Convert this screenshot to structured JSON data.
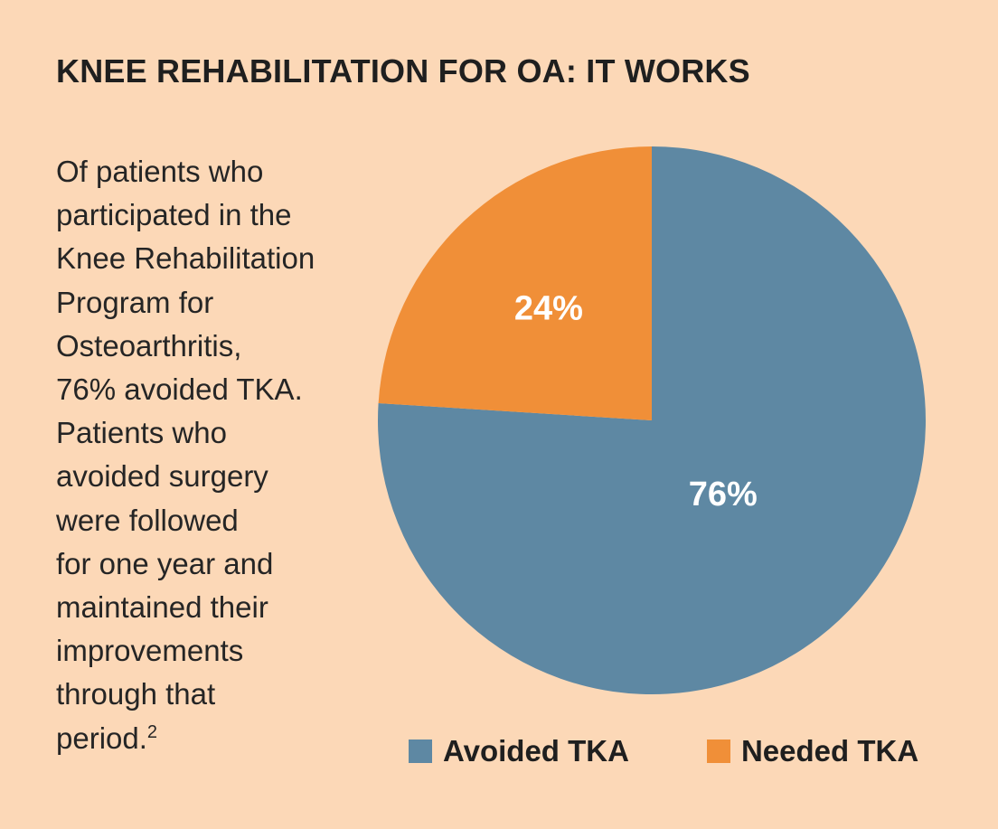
{
  "colors": {
    "background": "#fcd8b7",
    "avoided": "#5e88a3",
    "needed": "#f08f38"
  },
  "title": "KNEE REHABILITATION FOR OA: IT WORKS",
  "body_lines": [
    "Of patients who",
    "participated in the",
    "Knee Rehabilitation",
    "Program for",
    "Osteoarthritis,",
    "76% avoided TKA.",
    "Patients who",
    "avoided surgery",
    "were followed",
    "for one year and",
    "maintained their",
    "improvements",
    "through that",
    "period."
  ],
  "footnote_mark": "2",
  "chart_data": {
    "type": "pie",
    "slices": [
      {
        "name": "Avoided TKA",
        "value": 76,
        "label": "76%",
        "color": "#5e88a3"
      },
      {
        "name": "Needed TKA",
        "value": 24,
        "label": "24%",
        "color": "#f08f38"
      }
    ],
    "start": "12 o'clock",
    "direction": "clockwise",
    "legend": {
      "position": "bottom",
      "items": [
        "Avoided TKA",
        "Needed TKA"
      ]
    }
  }
}
